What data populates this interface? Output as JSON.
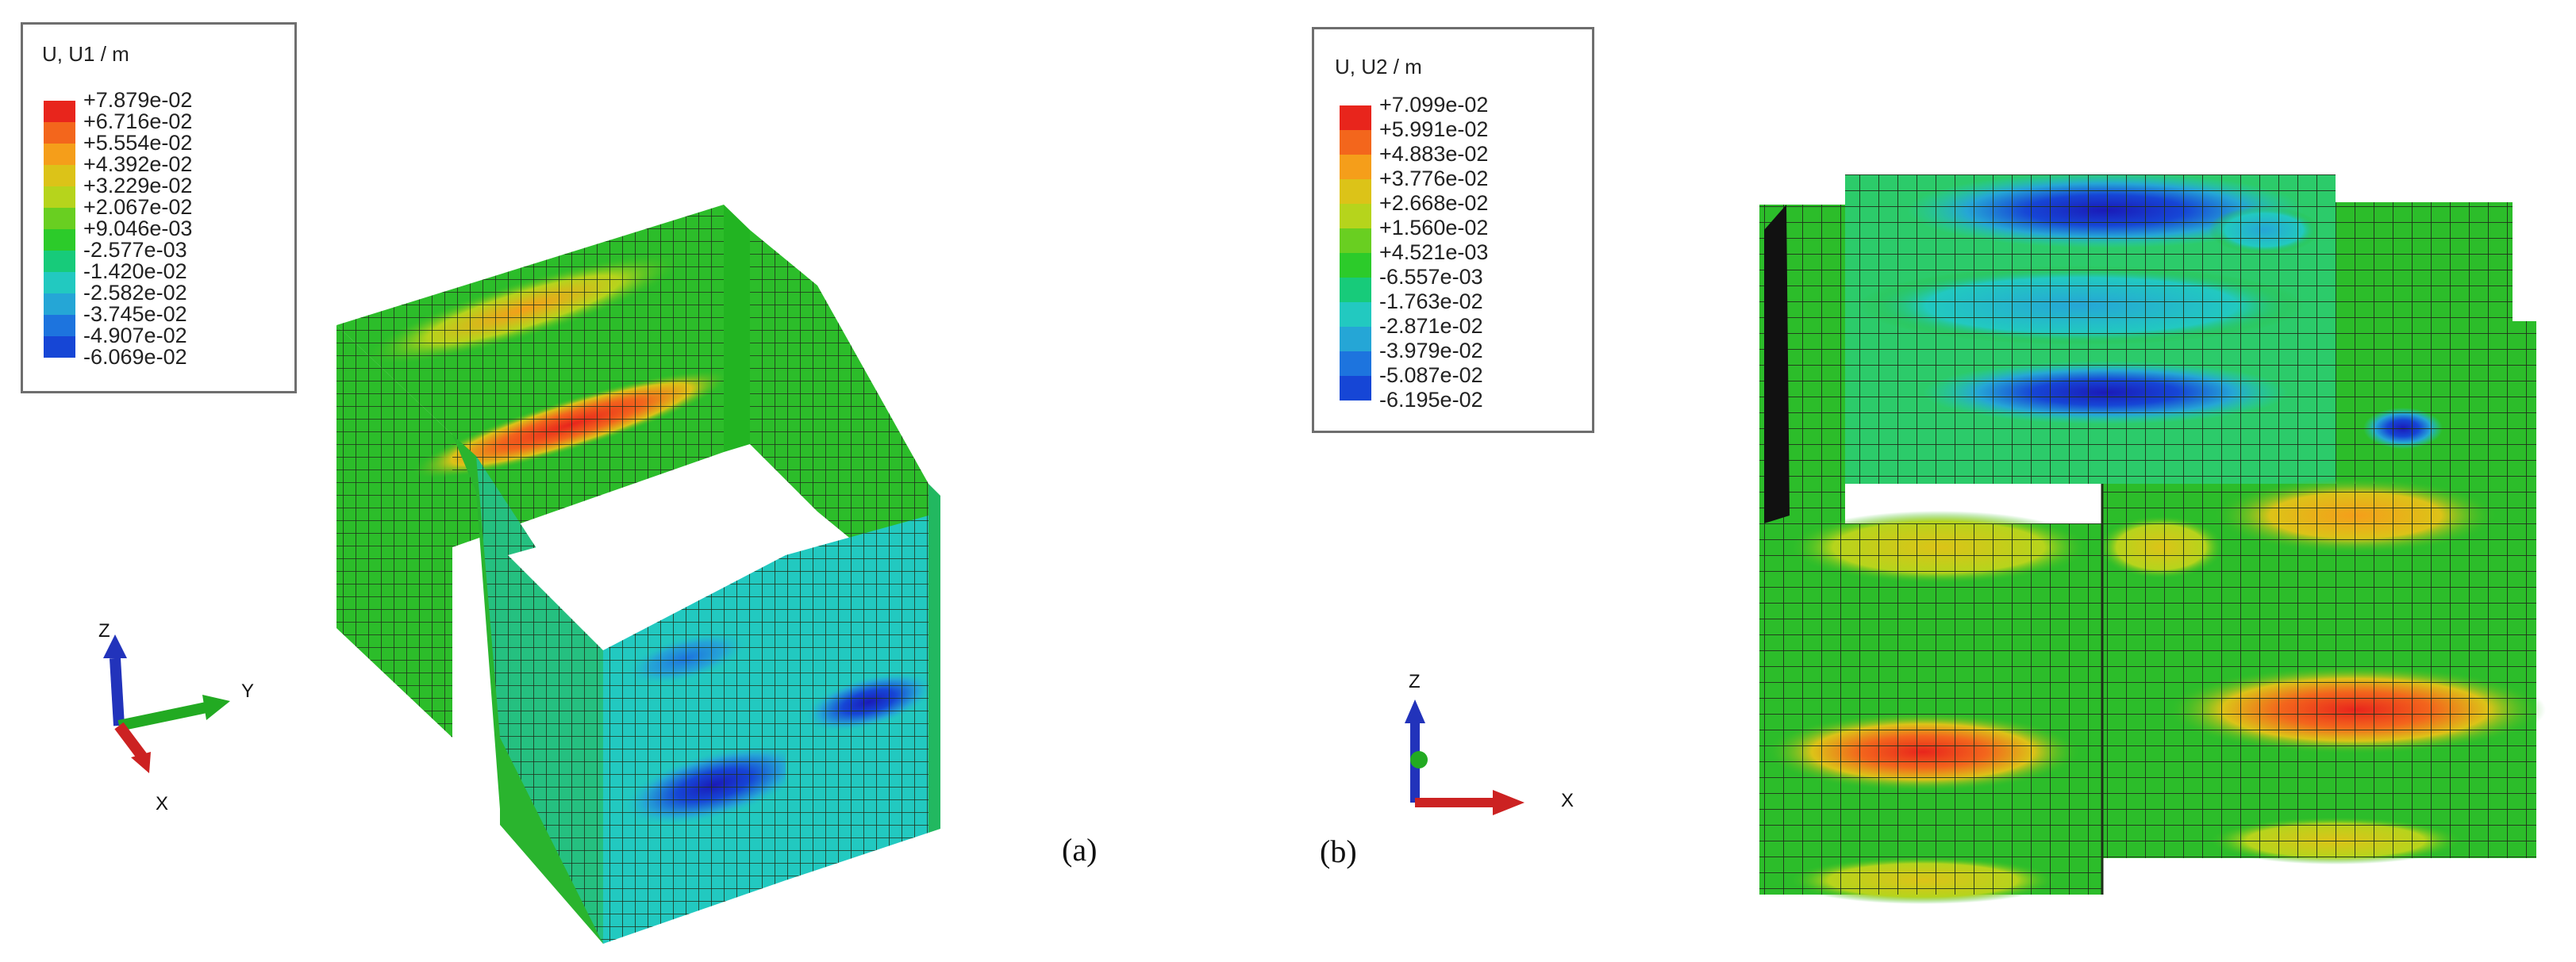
{
  "panels": [
    {
      "id": "a",
      "caption": "(a)",
      "legend": {
        "title": "U, U1",
        "unit": "m",
        "values": [
          "+7.879e-02",
          "+6.716e-02",
          "+5.554e-02",
          "+4.392e-02",
          "+3.229e-02",
          "+2.067e-02",
          "+9.046e-03",
          "-2.577e-03",
          "-1.420e-02",
          "-2.582e-02",
          "-3.745e-02",
          "-4.907e-02",
          "-6.069e-02"
        ]
      },
      "axes": {
        "z": "Z",
        "y": "Y",
        "x": "X"
      }
    },
    {
      "id": "b",
      "caption": "(b)",
      "legend": {
        "title": "U, U2",
        "unit": "m",
        "values": [
          "+7.099e-02",
          "+5.991e-02",
          "+4.883e-02",
          "+3.776e-02",
          "+2.668e-02",
          "+1.560e-02",
          "+4.521e-03",
          "-6.557e-03",
          "-1.763e-02",
          "-2.871e-02",
          "-3.979e-02",
          "-5.087e-02",
          "-6.195e-02"
        ]
      },
      "axes": {
        "z": "Z",
        "x": "X"
      }
    }
  ],
  "colors": {
    "scale": [
      "#e8251c",
      "#f3661c",
      "#f59e1a",
      "#dcc318",
      "#b6d41c",
      "#69cf21",
      "#2ccb2a",
      "#17cb7a",
      "#22c9c0",
      "#25a6d6",
      "#1d74de",
      "#1646d6",
      "#1a1ab8"
    ],
    "mesh": "#1f2f1a",
    "green": "#2cbd2a",
    "axis_x": "#cc2222",
    "axis_y": "#22aa22",
    "axis_z": "#2233bb"
  }
}
